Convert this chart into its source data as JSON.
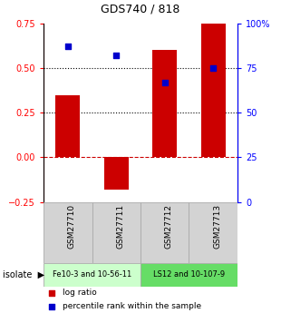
{
  "title": "GDS740 / 818",
  "samples": [
    "GSM27710",
    "GSM27711",
    "GSM27712",
    "GSM27713"
  ],
  "log_ratios": [
    0.35,
    -0.18,
    0.6,
    0.75
  ],
  "percentile_ranks": [
    87,
    82,
    67,
    75
  ],
  "bar_color": "#cc0000",
  "dot_color": "#0000cc",
  "ylim_left": [
    -0.25,
    0.75
  ],
  "ylim_right": [
    0,
    100
  ],
  "yticks_left": [
    -0.25,
    0,
    0.25,
    0.5,
    0.75
  ],
  "yticks_right": [
    0,
    25,
    50,
    75,
    100
  ],
  "hlines": [
    0.5,
    0.25
  ],
  "hline_zero_color": "#cc0000",
  "groups": [
    {
      "label": "Fe10-3 and 10-56-11",
      "samples": [
        0,
        1
      ],
      "color": "#ccffcc"
    },
    {
      "label": "LS12 and 10-107-9",
      "samples": [
        2,
        3
      ],
      "color": "#66dd66"
    }
  ],
  "isolate_label": "isolate",
  "legend_log_ratio": "log ratio",
  "legend_percentile": "percentile rank within the sample",
  "bar_width": 0.5,
  "background_color": "#ffffff"
}
